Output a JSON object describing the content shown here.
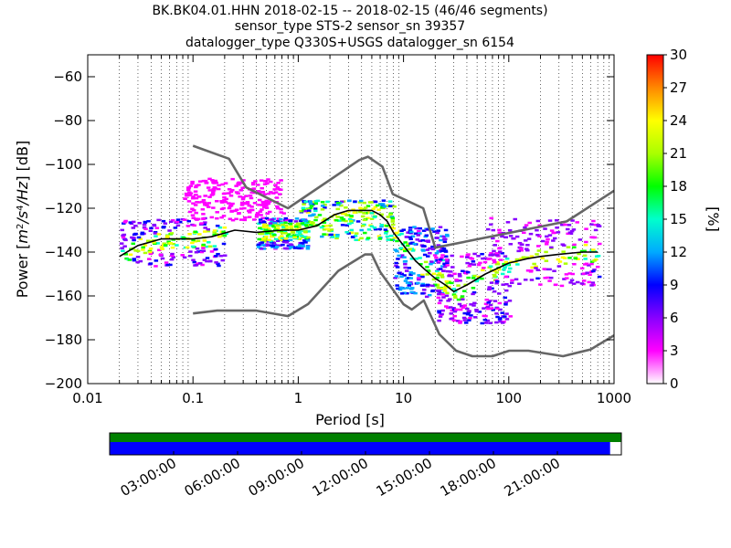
{
  "title_lines": [
    "BK.BK04.01.HHN   2018-02-15 -- 2018-02-15  (46/46 segments)",
    "sensor_type STS-2 sensor_sn 39357",
    "datalogger_type Q330S+USGS datalogger_sn 6154"
  ],
  "chart_data": {
    "type": "heatmap",
    "title_lines": [
      "BK.BK04.01.HHN   2018-02-15 -- 2018-02-15  (46/46 segments)",
      "sensor_type STS-2 sensor_sn 39357",
      "datalogger_type Q330S+USGS datalogger_sn 6154"
    ],
    "xlabel": "Period [s]",
    "ylabel": "Power [m²/s⁴/Hz] [dB]",
    "xscale": "log",
    "xlim": [
      0.01,
      1000
    ],
    "ylim": [
      -200,
      -50
    ],
    "xtick_values": [
      0.01,
      0.1,
      1,
      10,
      100,
      1000
    ],
    "xtick_labels": [
      "0.01",
      "0.1",
      "1",
      "10",
      "100",
      "1000"
    ],
    "ytick_values": [
      -60,
      -80,
      -100,
      -120,
      -140,
      -160,
      -180,
      -200
    ],
    "ytick_labels": [
      "−60",
      "−80",
      "−100",
      "−120",
      "−140",
      "−160",
      "−180",
      "−200"
    ],
    "grid": "dotted vertical at each log period",
    "colorbar": {
      "label": "[%]",
      "range": [
        0,
        30
      ],
      "tick_values": [
        0,
        3,
        6,
        9,
        12,
        15,
        18,
        21,
        24,
        27,
        30
      ],
      "tick_labels": [
        "0",
        "3",
        "6",
        "9",
        "12",
        "15",
        "18",
        "21",
        "24",
        "27",
        "30"
      ],
      "colormap": [
        "#ffffff",
        "#ff00ff",
        "#8800ff",
        "#0000ff",
        "#00aaff",
        "#00ffcc",
        "#00ff00",
        "#aaff00",
        "#ffff00",
        "#ff8800",
        "#ff0000"
      ]
    },
    "series": [
      {
        "name": "NHNM",
        "color": "#666666",
        "x": [
          0.1,
          0.22,
          0.32,
          0.8,
          3.8,
          4.6,
          6.3,
          7.9,
          15.4,
          20,
          354.8,
          1000
        ],
        "y": [
          -91.5,
          -97.4,
          -110.5,
          -120,
          -98,
          -96.5,
          -101,
          -113.5,
          -120,
          -138,
          -126,
          -112
        ]
      },
      {
        "name": "NLNM",
        "color": "#666666",
        "x": [
          0.1,
          0.17,
          0.4,
          0.8,
          1.24,
          2.4,
          4.3,
          5,
          6,
          10,
          12,
          15.6,
          21.9,
          31.6,
          45,
          70,
          101,
          154,
          328,
          600,
          1000
        ],
        "y": [
          -168,
          -166.7,
          -166.7,
          -169.2,
          -163.7,
          -148.6,
          -141.1,
          -141.1,
          -149,
          -163.8,
          -166.2,
          -162.1,
          -177.5,
          -185,
          -187.5,
          -187.5,
          -185,
          -185,
          -187.5,
          -184.4,
          -178
        ]
      },
      {
        "name": "mode",
        "color": "#000000",
        "x": [
          0.02,
          0.03,
          0.05,
          0.1,
          0.15,
          0.25,
          0.4,
          0.7,
          1,
          1.5,
          2.2,
          3,
          4,
          5,
          6,
          7,
          8,
          10,
          13,
          16,
          20,
          25,
          30,
          40,
          60,
          100,
          150,
          200,
          300,
          500,
          700
        ],
        "y": [
          -142,
          -137,
          -134,
          -134,
          -133,
          -130,
          -131,
          -130,
          -130,
          -128,
          -123,
          -121,
          -121,
          -121,
          -123,
          -126,
          -131,
          -137,
          -144,
          -148,
          -152,
          -155,
          -158,
          -155,
          -150,
          -145,
          -143,
          -142,
          -141,
          -140,
          -140
        ]
      }
    ],
    "heat_clusters": [
      {
        "x": [
          0.02,
          0.2
        ],
        "y": [
          -146,
          -124
        ],
        "level": 0.25
      },
      {
        "x": [
          0.08,
          0.7
        ],
        "y": [
          -125,
          -106
        ],
        "level": 0.06
      },
      {
        "x": [
          0.4,
          1.2
        ],
        "y": [
          -138,
          -124
        ],
        "level": 0.35
      },
      {
        "x": [
          1,
          8
        ],
        "y": [
          -134,
          -116
        ],
        "level": 0.6
      },
      {
        "x": [
          8,
          25
        ],
        "y": [
          -160,
          -128
        ],
        "level": 0.35
      },
      {
        "x": [
          20,
          100
        ],
        "y": [
          -172,
          -140
        ],
        "level": 0.22
      },
      {
        "x": [
          60,
          700
        ],
        "y": [
          -155,
          -124
        ],
        "level": 0.2
      }
    ]
  },
  "timeline": {
    "tick_labels": [
      "03:00:00",
      "06:00:00",
      "09:00:00",
      "12:00:00",
      "15:00:00",
      "18:00:00",
      "21:00:00"
    ],
    "tick_fractions": [
      0.125,
      0.25,
      0.375,
      0.5,
      0.625,
      0.75,
      0.875
    ],
    "top_bar": {
      "color": "#008000",
      "coverage": [
        0,
        1
      ]
    },
    "bottom_bar": {
      "color": "#0000ff",
      "coverage": [
        0,
        0.978
      ]
    }
  }
}
